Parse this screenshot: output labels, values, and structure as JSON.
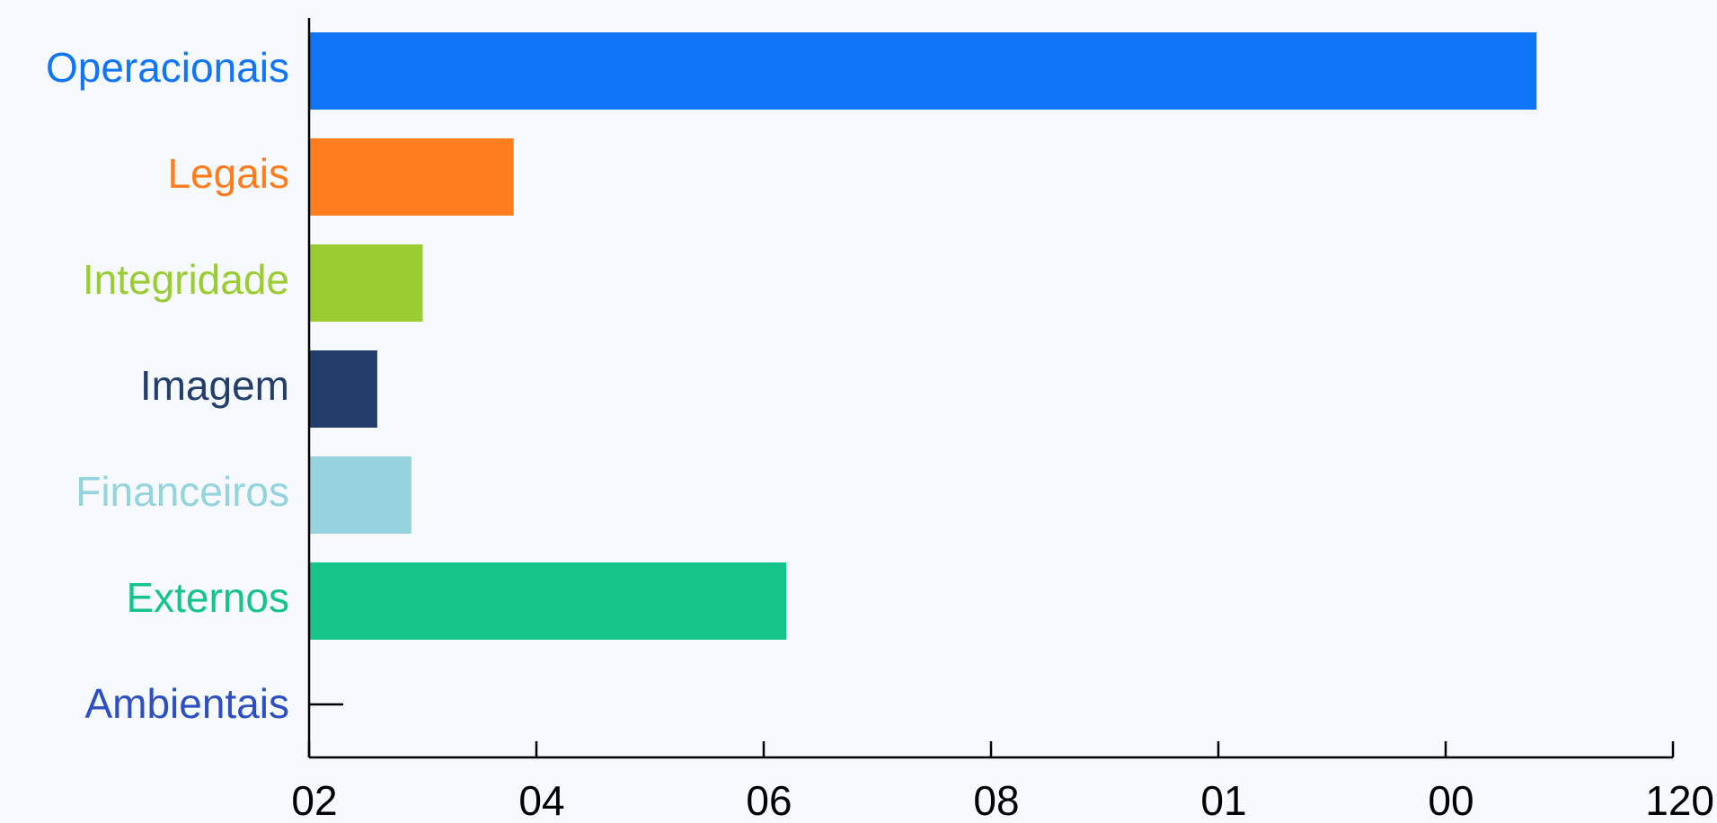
{
  "chart_data": {
    "type": "bar",
    "orientation": "horizontal",
    "categories": [
      "Operacionais",
      "Legais",
      "Integridade",
      "Imagem",
      "Financeiros",
      "Externos",
      "Ambientais"
    ],
    "values": [
      108,
      18,
      10,
      6,
      9,
      42,
      0
    ],
    "colors": [
      "#1175F7",
      "#FF7C1F",
      "#9BCD32",
      "#233E6B",
      "#95D3DE",
      "#16C48A",
      "#2E4FC1"
    ],
    "x_tick_labels": [
      "02",
      "04",
      "06",
      "08",
      "01",
      "00",
      "120"
    ],
    "xlim": [
      0,
      120
    ],
    "grid": false,
    "legend": "none"
  }
}
